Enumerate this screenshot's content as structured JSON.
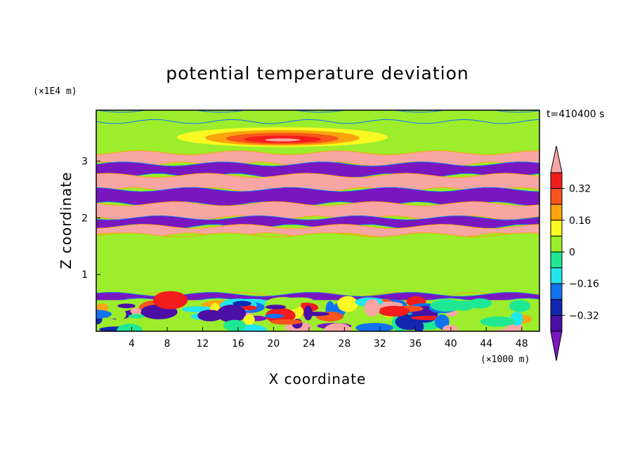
{
  "chart_data": {
    "type": "heatmap",
    "title": "potential temperature deviation",
    "time_label": "t=410400 s",
    "xlabel": "X coordinate",
    "ylabel": "Z coordinate",
    "x_unit": "(×1000 m)",
    "y_unit": "(×1E4 m)",
    "xlim": [
      0,
      50
    ],
    "ylim": [
      0,
      3.9
    ],
    "x_ticks": [
      4,
      8,
      12,
      16,
      20,
      24,
      28,
      32,
      36,
      40,
      44,
      48
    ],
    "y_ticks": [
      1,
      2,
      3
    ],
    "colorbar": {
      "levels": [
        -0.4,
        -0.32,
        -0.24,
        -0.16,
        -0.08,
        0,
        0.08,
        0.16,
        0.24,
        0.32,
        0.4
      ],
      "tick_labels": [
        "0.32",
        "0.16",
        "0",
        "−0.16",
        "−0.32"
      ],
      "tick_values": [
        0.32,
        0.16,
        0,
        -0.16,
        -0.32
      ],
      "colors": [
        "#7a16c0",
        "#4b0fa6",
        "#1226b0",
        "#1173f0",
        "#22e6ee",
        "#1ee894",
        "#9ced2c",
        "#fafa22",
        "#fca40c",
        "#f8541c",
        "#f31c1c",
        "#f7a6a4"
      ]
    },
    "field_bands": [
      {
        "z_range": [
          3.7,
          3.9
        ],
        "value": 0.0,
        "note": "top background"
      },
      {
        "z_range": [
          3.25,
          3.6
        ],
        "value": 0.35,
        "note": "warm anomaly centered near x=21"
      },
      {
        "z_range": [
          2.95,
          3.15
        ],
        "value": 0.5
      },
      {
        "z_range": [
          2.75,
          2.95
        ],
        "value": -0.45
      },
      {
        "z_range": [
          2.5,
          2.75
        ],
        "value": 0.5
      },
      {
        "z_range": [
          2.25,
          2.5
        ],
        "value": -0.45
      },
      {
        "z_range": [
          2.0,
          2.25
        ],
        "value": 0.5
      },
      {
        "z_range": [
          1.85,
          2.0
        ],
        "value": -0.45
      },
      {
        "z_range": [
          1.7,
          1.85
        ],
        "value": 0.5
      },
      {
        "z_range": [
          0.65,
          1.7
        ],
        "value": 0.04,
        "note": "near-neutral layer"
      },
      {
        "z_range": [
          0.55,
          0.65
        ],
        "value": -0.45
      },
      {
        "z_range": [
          0.0,
          0.55
        ],
        "value": 0.0,
        "note": "turbulent boundary layer"
      }
    ]
  }
}
